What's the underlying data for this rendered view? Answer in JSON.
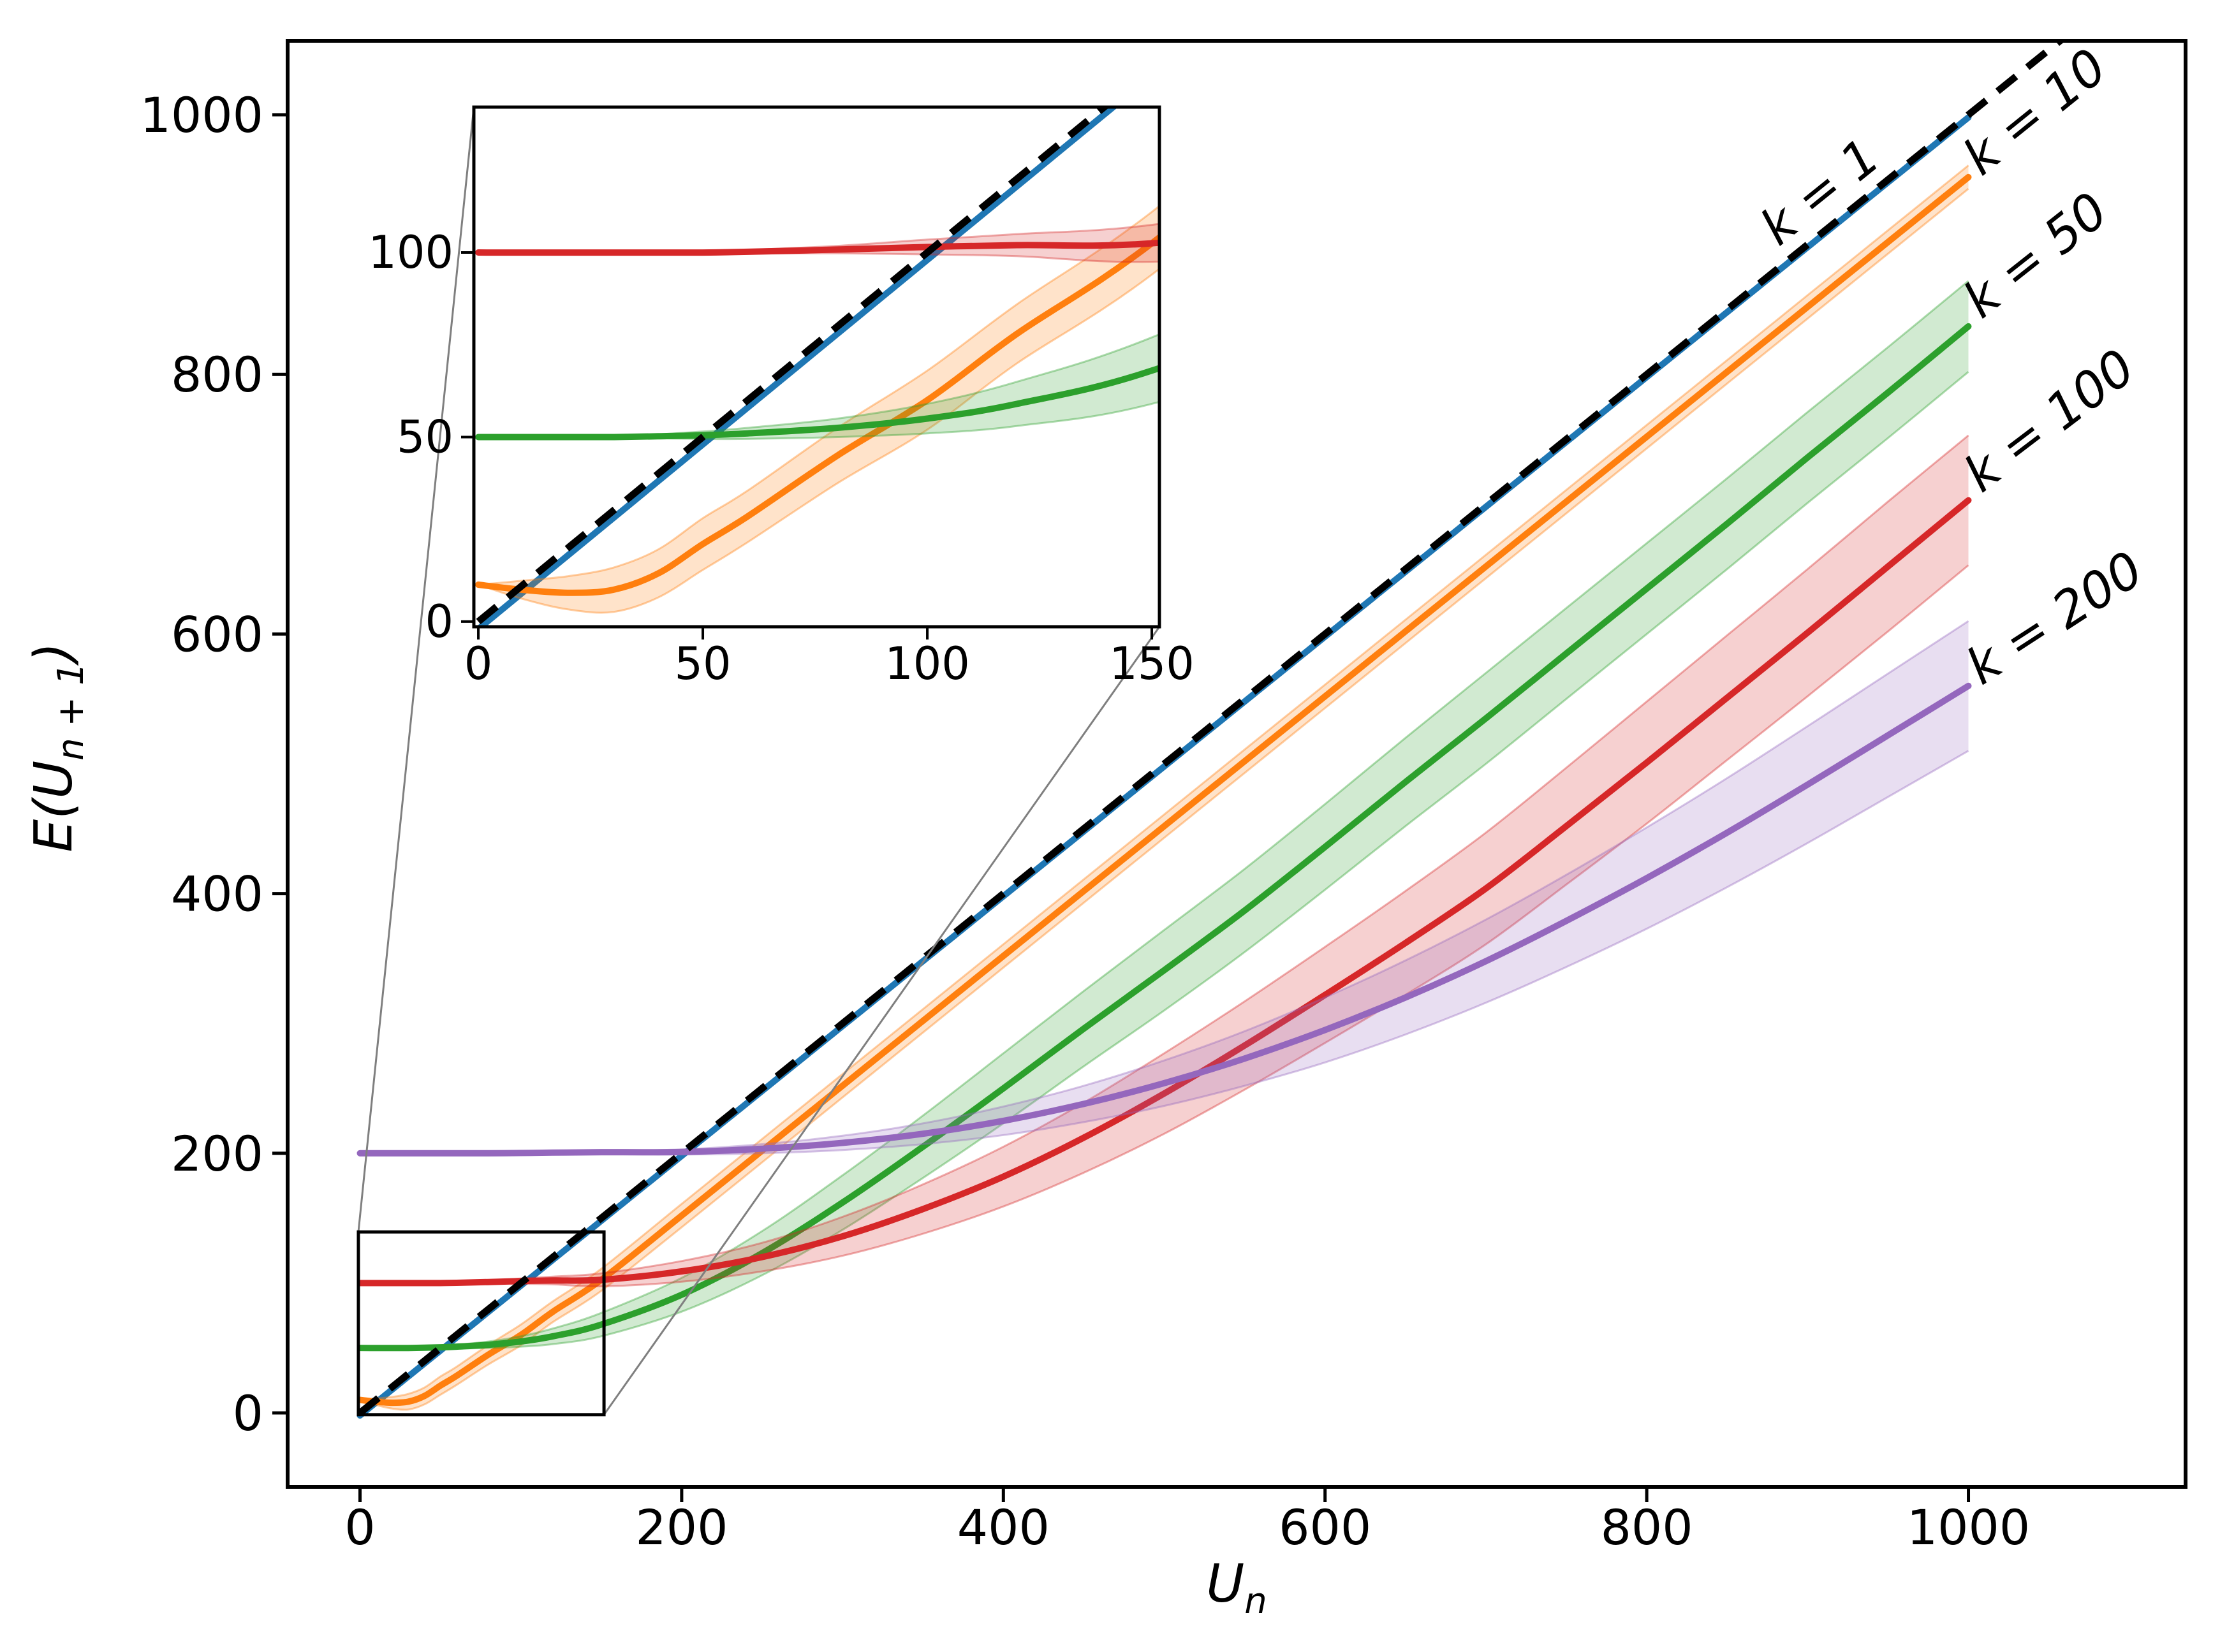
{
  "chart_data": {
    "type": "line",
    "title": "",
    "xlabel": {
      "base": "U",
      "subscript": "n"
    },
    "ylabel": {
      "prefix": "E(U",
      "subscript": "n + 1",
      "suffix": ")"
    },
    "main_axes": {
      "xlim": [
        -45,
        1135
      ],
      "ylim": [
        -57,
        1057
      ],
      "xticks": [
        0,
        200,
        400,
        600,
        800,
        1000
      ],
      "yticks": [
        0,
        200,
        400,
        600,
        800,
        1000
      ],
      "grid": false,
      "legend": "inline rotated labels at right ends of curves"
    },
    "inset_axes": {
      "xlim": [
        -1,
        151.7
      ],
      "ylim": [
        -1.4,
        139.4
      ],
      "xticks": [
        0,
        50,
        100,
        150
      ],
      "yticks": [
        0,
        50,
        100
      ],
      "description": "zoom of region near origin, linked by gray connector lines"
    },
    "reference_line": {
      "name": "identity",
      "style": "dashed",
      "color": "#000000",
      "x": [
        0,
        1060
      ],
      "y": [
        0,
        1060
      ]
    },
    "connector_color": "#7f7f7f",
    "series": [
      {
        "name": "k = 1",
        "k": 1,
        "color": "#1f77b4",
        "x": [
          0,
          1000
        ],
        "y": [
          -2,
          998
        ],
        "band": null
      },
      {
        "name": "k = 10",
        "k": 10,
        "color": "#ff7f0e",
        "x": [
          0,
          10,
          20,
          30,
          40,
          50,
          60,
          80,
          100,
          120,
          150,
          200,
          250,
          300,
          350,
          400,
          450,
          500,
          550,
          600,
          650,
          700,
          750,
          800,
          850,
          900,
          950,
          1000
        ],
        "y": [
          10,
          8.6,
          7.8,
          8.6,
          13,
          21,
          28.5,
          45,
          60,
          78,
          102.5,
          152,
          202,
          252,
          302,
          352,
          402,
          452,
          502,
          552,
          602,
          652,
          702,
          752,
          802,
          852,
          902,
          952
        ],
        "band": [
          0,
          2.5,
          4.5,
          6,
          6.5,
          7,
          7,
          7.5,
          8,
          8,
          8.5,
          9,
          9,
          9,
          9,
          9,
          9,
          9,
          9,
          9,
          9,
          9,
          9,
          9,
          9,
          9,
          9,
          9
        ]
      },
      {
        "name": "k = 50",
        "k": 50,
        "color": "#2ca02c",
        "x": [
          0,
          10,
          20,
          30,
          40,
          50,
          60,
          80,
          100,
          120,
          150,
          200,
          250,
          300,
          350,
          400,
          450,
          500,
          550,
          600,
          650,
          700,
          750,
          800,
          850,
          900,
          950,
          1000
        ],
        "y": [
          50,
          50,
          50,
          50,
          50.2,
          50.5,
          51,
          52.5,
          55,
          59,
          68,
          91,
          123,
          162,
          205,
          250,
          296,
          341,
          387,
          436,
          486,
          535,
          585,
          635,
          685,
          736,
          786,
          837
        ],
        "band": [
          0,
          0,
          0,
          0,
          0.5,
          1,
          1.5,
          2.5,
          4,
          6,
          9,
          13,
          17,
          21,
          24,
          27,
          29,
          31,
          32,
          33,
          34,
          35,
          35,
          35,
          35,
          35,
          35,
          35
        ]
      },
      {
        "name": "k = 100",
        "k": 100,
        "color": "#d62728",
        "x": [
          0,
          10,
          20,
          30,
          40,
          50,
          60,
          80,
          100,
          120,
          150,
          200,
          250,
          300,
          350,
          400,
          450,
          500,
          550,
          600,
          650,
          700,
          750,
          800,
          850,
          900,
          950,
          1000
        ],
        "y": [
          100,
          100,
          100,
          100,
          100,
          100,
          100.2,
          100.8,
          101.5,
          102,
          102.5,
          109,
          120,
          136,
          157,
          182,
          212,
          246,
          283,
          322,
          362,
          404,
          452,
          501,
          551,
          601,
          652,
          703
        ],
        "band": [
          0,
          0,
          0,
          0,
          0,
          0.3,
          0.5,
          1,
          2,
          3,
          5,
          8,
          11,
          15,
          19,
          23,
          27,
          31,
          34,
          37,
          40,
          43,
          45,
          47,
          48,
          49,
          50,
          50
        ]
      },
      {
        "name": "k = 200",
        "k": 200,
        "color": "#9467bd",
        "x": [
          0,
          10,
          20,
          30,
          40,
          50,
          60,
          80,
          100,
          120,
          150,
          200,
          250,
          300,
          350,
          400,
          450,
          500,
          550,
          600,
          650,
          700,
          750,
          800,
          850,
          900,
          950,
          1000
        ],
        "y": [
          200,
          200,
          200,
          200,
          200,
          200,
          200,
          200,
          200.2,
          200.5,
          200.8,
          201,
          203.5,
          208,
          215,
          225,
          238,
          254,
          273,
          295,
          320,
          348,
          379,
          412,
          447,
          484,
          522,
          560
        ],
        "band": [
          0,
          0,
          0,
          0,
          0,
          0,
          0,
          0,
          0.2,
          0.5,
          1,
          2,
          3.5,
          5.5,
          8,
          11,
          14,
          17.5,
          21,
          25,
          28.5,
          32,
          35.5,
          39,
          42,
          45,
          47.5,
          50
        ]
      }
    ],
    "annotations": [
      {
        "text": "k = 1",
        "x": 882,
        "y": 898,
        "rotation": -38.9
      },
      {
        "text": "k = 10",
        "x": 1008,
        "y": 952,
        "rotation": -38.9
      },
      {
        "text": "k = 50",
        "x": 1008,
        "y": 842,
        "rotation": -38.3
      },
      {
        "text": "k = 100",
        "x": 1008,
        "y": 708,
        "rotation": -37.2
      },
      {
        "text": "k = 200",
        "x": 1008,
        "y": 560,
        "rotation": -33.0
      }
    ]
  }
}
